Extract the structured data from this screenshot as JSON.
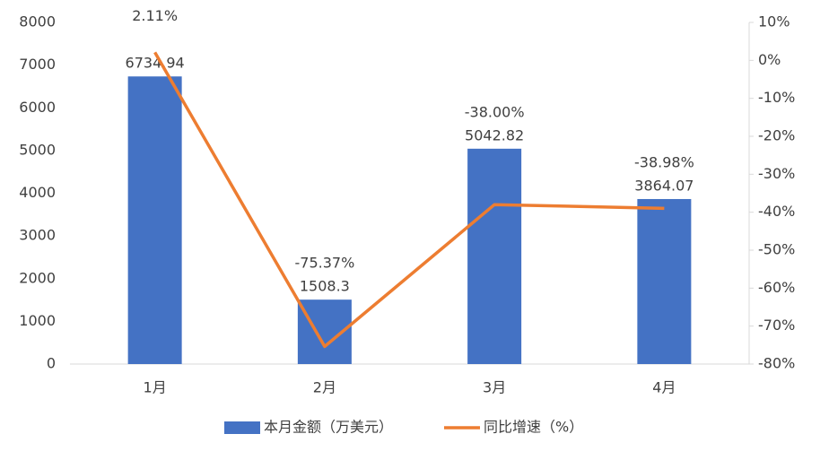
{
  "chart_data": {
    "type": "bar-line",
    "categories": [
      "1月",
      "2月",
      "3月",
      "4月"
    ],
    "series": [
      {
        "name": "本月金额（万美元）",
        "type": "bar",
        "color": "#4472c4",
        "values": [
          6734.94,
          1508.3,
          5042.82,
          3864.07
        ]
      },
      {
        "name": "同比增速（%）",
        "type": "line",
        "axis": "y2",
        "color": "#ed7d31",
        "values": [
          2.11,
          -75.37,
          -38.0,
          -38.98
        ],
        "value_labels": [
          "2.11%",
          "-75.37%",
          "-38.00%",
          "-38.98%"
        ]
      }
    ],
    "ylim": [
      0,
      8000
    ],
    "yticks": [
      0,
      1000,
      2000,
      3000,
      4000,
      5000,
      6000,
      7000,
      8000
    ],
    "y2lim": [
      -80,
      10
    ],
    "y2ticks": [
      {
        "value": -80,
        "label": "-80%"
      },
      {
        "value": -70,
        "label": "-70%"
      },
      {
        "value": -60,
        "label": "-60%"
      },
      {
        "value": -50,
        "label": "-50%"
      },
      {
        "value": -40,
        "label": "-40%"
      },
      {
        "value": -30,
        "label": "-30%"
      },
      {
        "value": -20,
        "label": "-20%"
      },
      {
        "value": -10,
        "label": "-10%"
      },
      {
        "value": 0,
        "label": "0%"
      },
      {
        "value": 10,
        "label": "10%"
      }
    ],
    "legend": "bottom"
  }
}
